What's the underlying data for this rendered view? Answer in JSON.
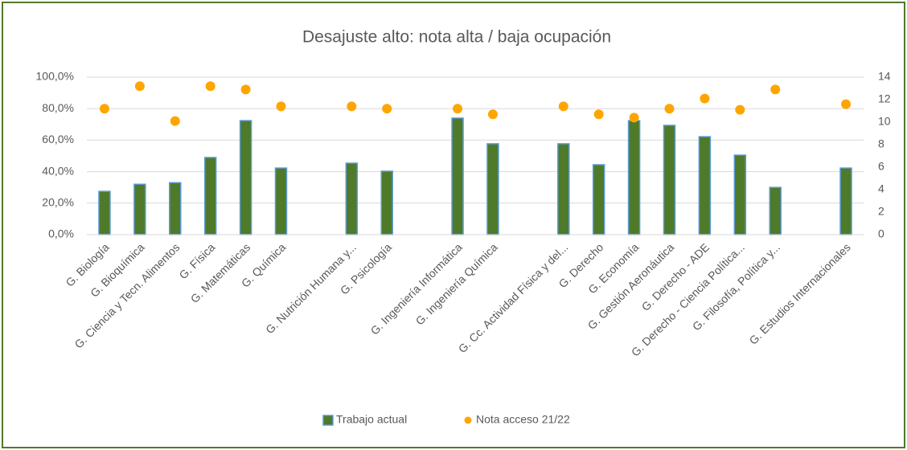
{
  "chart_data": {
    "type": "bar",
    "title": "Desajuste alto: nota alta / baja ocupación",
    "categories": [
      "G. Biología",
      "G. Bioquímica",
      "G. Ciencia y Tecn. Alimentos",
      "G. Física",
      "G. Matemáticas",
      "G. Química",
      null,
      "G. Nutrición Humana y...",
      "G. Psicología",
      null,
      "G. Ingeniería Informática",
      "G. Ingeniería Química",
      null,
      "G. Cc. Actividad Física y del...",
      "G. Derecho",
      "G. Economía",
      "G. Gestión Aeronáutica",
      "G. Derecho - ADE",
      "G. Derecho - Ciencia Política...",
      "G. Filosofía, Política y...",
      null,
      "G. Estudios Internacionales"
    ],
    "series": [
      {
        "name": "Trabajo actual",
        "type": "bar",
        "color": "#4e7a2a",
        "values": [
          27.5,
          32,
          33,
          49,
          72.4,
          42.3,
          null,
          45.4,
          40.3,
          null,
          74,
          57.7,
          null,
          57.7,
          44.4,
          72.4,
          69.4,
          62.2,
          50.5,
          30,
          null,
          42.3
        ]
      },
      {
        "name": "Nota acceso 21/22",
        "type": "scatter",
        "axis": "y2",
        "color": "#ffa500",
        "values": [
          11.2,
          13.2,
          10.1,
          13.2,
          12.9,
          11.4,
          null,
          11.4,
          11.2,
          null,
          11.2,
          10.7,
          null,
          11.4,
          10.7,
          10.4,
          11.2,
          12.1,
          11.1,
          12.9,
          null,
          11.6
        ]
      }
    ],
    "ylim": [
      0,
      100
    ],
    "yticks": [
      {
        "value": 0,
        "label": "0,0%"
      },
      {
        "value": 20,
        "label": "20,0%"
      },
      {
        "value": 40,
        "label": "40,0%"
      },
      {
        "value": 60,
        "label": "60,0%"
      },
      {
        "value": 80,
        "label": "80,0%"
      },
      {
        "value": 100,
        "label": "100,0%"
      }
    ],
    "y2lim": [
      0,
      14
    ],
    "y2ticks": [
      0,
      2,
      4,
      6,
      8,
      10,
      12,
      14
    ],
    "legend": "bottom"
  }
}
